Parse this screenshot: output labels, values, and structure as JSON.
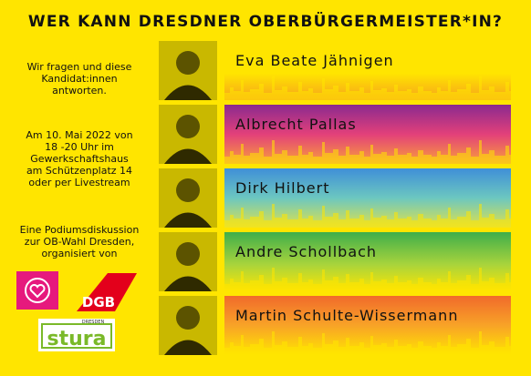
{
  "header": {
    "title": "WER KANN DRESDNER OBERBÜRGERMEISTER*IN?"
  },
  "intro": {
    "lines": [
      "Wir fragen und diese",
      "Kandidat:innen",
      "antworten."
    ]
  },
  "event": {
    "lines": [
      "Am 10. Mai 2022 von",
      "18 -20 Uhr im",
      "Gewerkschaftshaus",
      "am Schützenplatz 14",
      "oder per Livestream"
    ]
  },
  "organizers": {
    "lines": [
      "Eine Podiumsdiskussion",
      "zur OB-Wahl Dresden,",
      "organisiert von"
    ],
    "logos": {
      "dgb": "DGB",
      "stura_small": "DRESDEN",
      "stura": "stura"
    }
  },
  "candidates": [
    {
      "name": "Eva Beate Jähnigen"
    },
    {
      "name": "Albrecht Pallas"
    },
    {
      "name": "Dirk Hilbert"
    },
    {
      "name": "Andre Schollbach"
    },
    {
      "name": "Martin Schulte-Wissermann"
    }
  ]
}
